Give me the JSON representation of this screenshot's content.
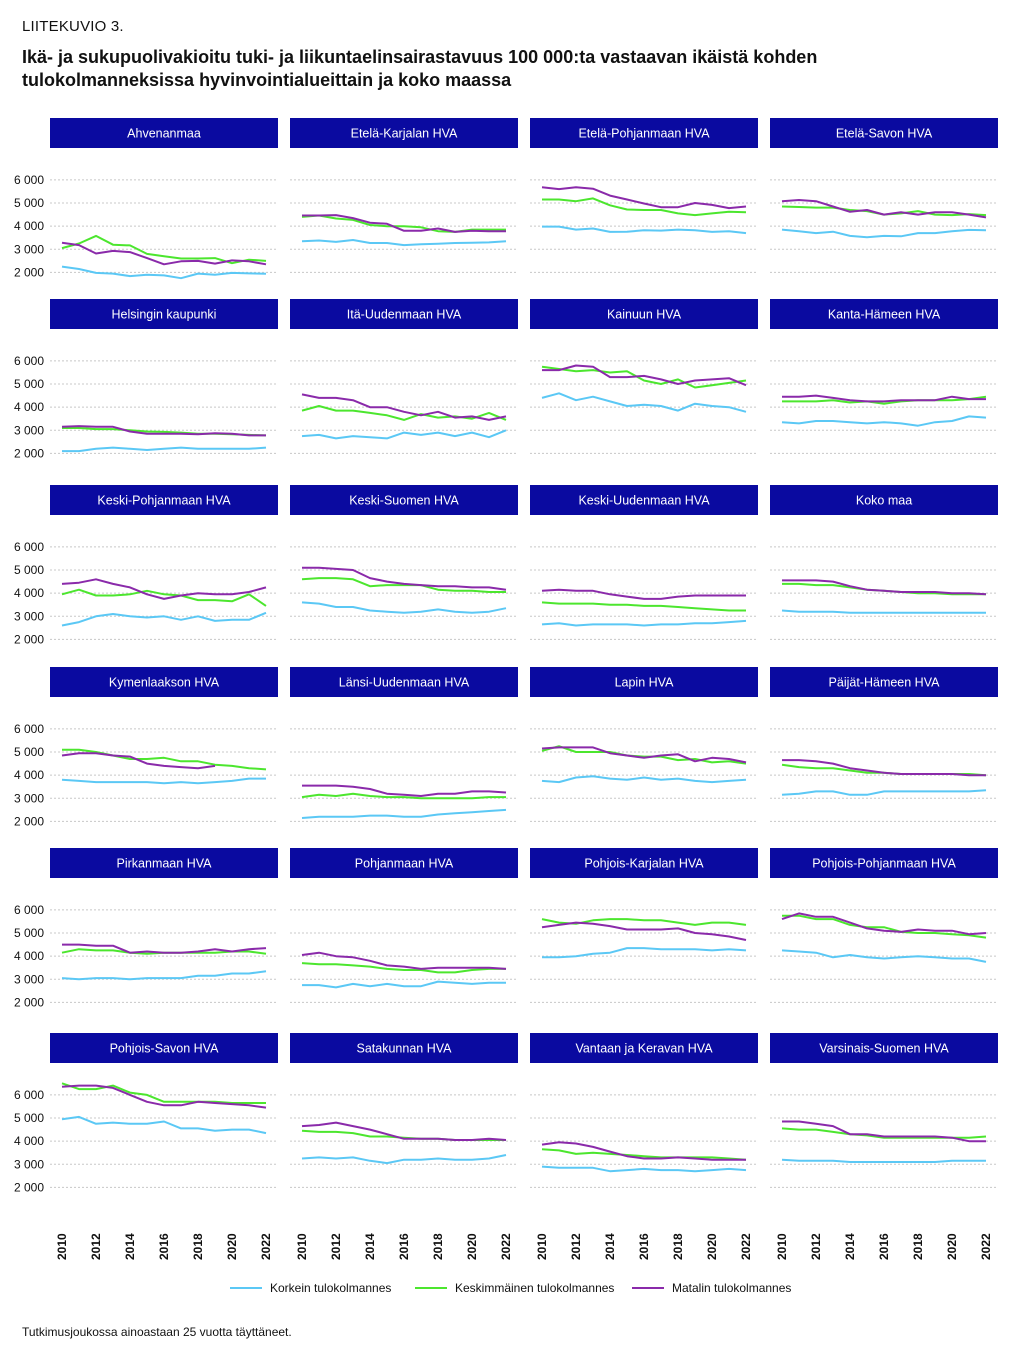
{
  "kicker": "LIITEKUVIO 3.",
  "title": "Ikä- ja sukupuolivakioitu tuki- ja liikuntaelinsairastavuus 100 000:ta vastaavan ikäistä kohden tulokolmanneksissa hyvinvointialueittain ja koko maassa",
  "footnote": "Tutkimusjoukossa ainoastaan 25 vuotta täyttäneet.",
  "colors": {
    "korkein": "#5bc8f5",
    "keskimmainen": "#4ce62e",
    "matalin": "#8a2aaa",
    "header": "#0a0aa0"
  },
  "chart_data": {
    "type": "line",
    "x": [
      2010,
      2011,
      2012,
      2013,
      2014,
      2015,
      2016,
      2017,
      2018,
      2019,
      2020,
      2021,
      2022
    ],
    "x_ticks": [
      "2010",
      "2012",
      "2014",
      "2016",
      "2018",
      "2020",
      "2022"
    ],
    "y_ticks": [
      "2 000",
      "3 000",
      "4 000",
      "5 000",
      "6 000"
    ],
    "ylim": [
      1500,
      6600
    ],
    "legend": [
      "Korkein tulokolmannes",
      "Keskimmäinen tulokolmannes",
      "Matalin tulokolmannes"
    ],
    "legend_placement": "bottom",
    "panels": [
      {
        "name": "Ahvenanmaa",
        "korkein": [
          2250,
          2150,
          1980,
          1950,
          1840,
          1900,
          1870,
          1750,
          1950,
          1900,
          1980,
          1960,
          1940
        ],
        "keskimmainen": [
          3050,
          3250,
          3580,
          3200,
          3170,
          2800,
          2700,
          2600,
          2600,
          2620,
          2400,
          2550,
          2500
        ],
        "matalin": [
          3280,
          3180,
          2820,
          2930,
          2880,
          2620,
          2350,
          2480,
          2500,
          2380,
          2520,
          2480,
          2350
        ]
      },
      {
        "name": "Etelä-Karjalan HVA",
        "korkein": [
          3350,
          3380,
          3320,
          3400,
          3270,
          3270,
          3180,
          3220,
          3240,
          3270,
          3280,
          3300,
          3350
        ],
        "keskimmainen": [
          4400,
          4460,
          4330,
          4270,
          4050,
          4000,
          4000,
          3950,
          3780,
          3750,
          3850,
          3850,
          3850
        ],
        "matalin": [
          4460,
          4460,
          4480,
          4350,
          4150,
          4100,
          3800,
          3800,
          3900,
          3750,
          3800,
          3780,
          3780
        ]
      },
      {
        "name": "Etelä-Pohjanmaan HVA",
        "korkein": [
          3980,
          3980,
          3850,
          3900,
          3750,
          3760,
          3820,
          3810,
          3850,
          3820,
          3750,
          3780,
          3700
        ],
        "keskimmainen": [
          5150,
          5150,
          5080,
          5200,
          4900,
          4720,
          4700,
          4700,
          4550,
          4480,
          4550,
          4620,
          4600
        ],
        "matalin": [
          5680,
          5600,
          5680,
          5620,
          5320,
          5150,
          4980,
          4820,
          4820,
          5000,
          4920,
          4780,
          4850
        ]
      },
      {
        "name": "Etelä-Savon HVA",
        "korkein": [
          3850,
          3780,
          3700,
          3760,
          3580,
          3520,
          3580,
          3560,
          3700,
          3700,
          3780,
          3840,
          3820
        ],
        "keskimmainen": [
          4850,
          4830,
          4800,
          4800,
          4700,
          4650,
          4500,
          4550,
          4650,
          4500,
          4480,
          4520,
          4480
        ],
        "matalin": [
          5080,
          5130,
          5080,
          4850,
          4620,
          4700,
          4500,
          4600,
          4500,
          4600,
          4600,
          4500,
          4380
        ]
      },
      {
        "name": "Helsingin kaupunki",
        "korkein": [
          2100,
          2100,
          2200,
          2250,
          2200,
          2150,
          2200,
          2250,
          2200,
          2200,
          2200,
          2200,
          2250
        ],
        "keskimmainen": [
          3100,
          3100,
          3050,
          3050,
          3000,
          2950,
          2930,
          2900,
          2850,
          2850,
          2830,
          2800,
          2780
        ],
        "matalin": [
          3150,
          3180,
          3150,
          3150,
          2950,
          2850,
          2850,
          2850,
          2830,
          2870,
          2850,
          2780,
          2780
        ]
      },
      {
        "name": "Itä-Uudenmaan HVA",
        "korkein": [
          2750,
          2800,
          2650,
          2750,
          2700,
          2650,
          2900,
          2800,
          2900,
          2750,
          2900,
          2700,
          3000
        ],
        "keskimmainen": [
          3850,
          4050,
          3850,
          3850,
          3750,
          3650,
          3450,
          3700,
          3550,
          3600,
          3500,
          3750,
          3450
        ],
        "matalin": [
          4550,
          4400,
          4400,
          4300,
          4000,
          4000,
          3800,
          3650,
          3800,
          3550,
          3600,
          3450,
          3600
        ]
      },
      {
        "name": "Kainuun HVA",
        "korkein": [
          4400,
          4600,
          4300,
          4450,
          4250,
          4050,
          4100,
          4050,
          3850,
          4150,
          4050,
          4000,
          3800
        ],
        "keskimmainen": [
          5750,
          5650,
          5550,
          5600,
          5500,
          5550,
          5150,
          5000,
          5200,
          4850,
          4950,
          5050,
          5150
        ],
        "matalin": [
          5600,
          5600,
          5800,
          5750,
          5300,
          5300,
          5350,
          5200,
          5000,
          5150,
          5200,
          5250,
          4950
        ]
      },
      {
        "name": "Kanta-Hämeen HVA",
        "korkein": [
          3350,
          3300,
          3400,
          3400,
          3350,
          3300,
          3350,
          3300,
          3200,
          3350,
          3400,
          3600,
          3550
        ],
        "keskimmainen": [
          4250,
          4250,
          4250,
          4300,
          4200,
          4250,
          4150,
          4250,
          4300,
          4300,
          4300,
          4350,
          4450
        ],
        "matalin": [
          4450,
          4450,
          4500,
          4400,
          4300,
          4250,
          4250,
          4300,
          4300,
          4300,
          4450,
          4350,
          4350
        ]
      },
      {
        "name": "Keski-Pohjanmaan HVA",
        "korkein": [
          2600,
          2750,
          3000,
          3100,
          3000,
          2950,
          3000,
          2850,
          3000,
          2800,
          2850,
          2850,
          3150
        ],
        "keskimmainen": [
          3950,
          4150,
          3900,
          3900,
          3950,
          4100,
          3950,
          3900,
          3700,
          3700,
          3650,
          3950,
          3450
        ],
        "matalin": [
          4400,
          4450,
          4600,
          4400,
          4250,
          3950,
          3750,
          3900,
          4000,
          3950,
          3950,
          4050,
          4250
        ]
      },
      {
        "name": "Keski-Suomen HVA",
        "korkein": [
          3600,
          3550,
          3400,
          3400,
          3250,
          3200,
          3150,
          3200,
          3300,
          3200,
          3150,
          3200,
          3350
        ],
        "keskimmainen": [
          4600,
          4650,
          4650,
          4600,
          4300,
          4350,
          4350,
          4350,
          4150,
          4100,
          4100,
          4050,
          4050
        ],
        "matalin": [
          5100,
          5100,
          5050,
          5000,
          4650,
          4500,
          4400,
          4350,
          4300,
          4300,
          4250,
          4250,
          4150
        ]
      },
      {
        "name": "Keski-Uudenmaan HVA",
        "korkein": [
          2650,
          2700,
          2600,
          2650,
          2650,
          2650,
          2600,
          2650,
          2650,
          2700,
          2700,
          2750,
          2800
        ],
        "keskimmainen": [
          3600,
          3550,
          3550,
          3550,
          3500,
          3500,
          3450,
          3450,
          3400,
          3350,
          3300,
          3250,
          3250
        ],
        "matalin": [
          4100,
          4150,
          4100,
          4100,
          3950,
          3850,
          3750,
          3750,
          3850,
          3900,
          3900,
          3900,
          3900
        ]
      },
      {
        "name": "Koko maa",
        "korkein": [
          3250,
          3200,
          3200,
          3200,
          3150,
          3150,
          3150,
          3150,
          3150,
          3150,
          3150,
          3150,
          3150
        ],
        "keskimmainen": [
          4400,
          4400,
          4350,
          4350,
          4250,
          4150,
          4100,
          4050,
          4000,
          4000,
          3950,
          3950,
          3950
        ],
        "matalin": [
          4550,
          4550,
          4550,
          4500,
          4300,
          4150,
          4100,
          4050,
          4050,
          4050,
          4000,
          4000,
          3950
        ]
      },
      {
        "name": "Kymenlaakson HVA",
        "korkein": [
          3800,
          3750,
          3700,
          3700,
          3700,
          3700,
          3650,
          3700,
          3650,
          3700,
          3750,
          3850,
          3850
        ],
        "keskimmainen": [
          5100,
          5100,
          5000,
          4850,
          4700,
          4700,
          4750,
          4600,
          4600,
          4450,
          4400,
          4300,
          4250
        ],
        "matalin": [
          4850,
          4950,
          4950,
          4850,
          4800,
          4500,
          4400,
          4350,
          4300,
          4400,
          null,
          null,
          null
        ]
      },
      {
        "name": "Länsi-Uudenmaan HVA",
        "korkein": [
          2150,
          2200,
          2200,
          2200,
          2250,
          2250,
          2200,
          2200,
          2300,
          2350,
          2400,
          2450,
          2500
        ],
        "keskimmainen": [
          3050,
          3150,
          3100,
          3200,
          3100,
          3050,
          3050,
          3000,
          3000,
          3000,
          3000,
          3050,
          3050
        ],
        "matalin": [
          3550,
          3550,
          3550,
          3500,
          3400,
          3200,
          3150,
          3100,
          3200,
          3200,
          3300,
          3300,
          3250
        ]
      },
      {
        "name": "Lapin HVA",
        "korkein": [
          3750,
          3700,
          3900,
          3950,
          3850,
          3800,
          3900,
          3800,
          3850,
          3750,
          3700,
          3750,
          3800
        ],
        "keskimmainen": [
          5050,
          5250,
          5000,
          5000,
          5000,
          4850,
          4800,
          4800,
          4650,
          4700,
          4550,
          4600,
          4500
        ],
        "matalin": [
          5150,
          5200,
          5200,
          5200,
          4950,
          4850,
          4750,
          4850,
          4900,
          4600,
          4750,
          4700,
          4550
        ]
      },
      {
        "name": "Päijät-Hämeen HVA",
        "korkein": [
          3150,
          3200,
          3300,
          3300,
          3150,
          3150,
          3300,
          3300,
          3300,
          3300,
          3300,
          3300,
          3350
        ],
        "keskimmainen": [
          4450,
          4350,
          4300,
          4300,
          4200,
          4100,
          4100,
          4050,
          4050,
          4050,
          4050,
          4050,
          4000
        ],
        "matalin": [
          4650,
          4650,
          4600,
          4500,
          4300,
          4200,
          4100,
          4050,
          4050,
          4050,
          4050,
          4000,
          4000
        ]
      },
      {
        "name": "Pirkanmaan HVA",
        "korkein": [
          3050,
          3000,
          3050,
          3050,
          3000,
          3050,
          3050,
          3050,
          3150,
          3150,
          3250,
          3250,
          3350
        ],
        "keskimmainen": [
          4150,
          4300,
          4250,
          4250,
          4150,
          4100,
          4150,
          4150,
          4150,
          4150,
          4200,
          4200,
          4100
        ],
        "matalin": [
          4500,
          4500,
          4450,
          4450,
          4150,
          4200,
          4150,
          4150,
          4200,
          4300,
          4200,
          4300,
          4350
        ]
      },
      {
        "name": "Pohjanmaan HVA",
        "korkein": [
          2750,
          2750,
          2650,
          2800,
          2700,
          2800,
          2700,
          2700,
          2900,
          2850,
          2800,
          2850,
          2850
        ],
        "keskimmainen": [
          3700,
          3650,
          3650,
          3600,
          3550,
          3450,
          3400,
          3400,
          3300,
          3300,
          3400,
          3450,
          3450
        ],
        "matalin": [
          4050,
          4150,
          4000,
          3950,
          3800,
          3600,
          3550,
          3450,
          3500,
          3500,
          3500,
          3500,
          3450
        ]
      },
      {
        "name": "Pohjois-Karjalan HVA",
        "korkein": [
          3950,
          3950,
          4000,
          4100,
          4150,
          4350,
          4350,
          4300,
          4300,
          4300,
          4250,
          4300,
          4250
        ],
        "keskimmainen": [
          5600,
          5450,
          5400,
          5550,
          5600,
          5600,
          5550,
          5550,
          5450,
          5350,
          5450,
          5450,
          5350
        ],
        "matalin": [
          5250,
          5350,
          5450,
          5400,
          5300,
          5150,
          5150,
          5150,
          5200,
          5000,
          4950,
          4850,
          4700
        ]
      },
      {
        "name": "Pohjois-Pohjanmaan HVA",
        "korkein": [
          4250,
          4200,
          4150,
          3950,
          4050,
          3950,
          3900,
          3950,
          4000,
          3950,
          3900,
          3900,
          3750
        ],
        "keskimmainen": [
          5750,
          5750,
          5600,
          5600,
          5350,
          5250,
          5250,
          5050,
          5000,
          5000,
          4950,
          4900,
          4800
        ],
        "matalin": [
          5600,
          5850,
          5700,
          5700,
          5450,
          5200,
          5100,
          5050,
          5150,
          5100,
          5100,
          4950,
          5000
        ]
      },
      {
        "name": "Pohjois-Savon HVA",
        "korkein": [
          4950,
          5050,
          4750,
          4800,
          4750,
          4750,
          4850,
          4550,
          4550,
          4450,
          4500,
          4500,
          4350
        ],
        "keskimmainen": [
          6500,
          6250,
          6250,
          6400,
          6100,
          6000,
          5700,
          5700,
          5700,
          5700,
          5650,
          5650,
          5650
        ],
        "matalin": [
          6350,
          6400,
          6400,
          6300,
          6000,
          5700,
          5550,
          5550,
          5700,
          5650,
          5600,
          5550,
          5450
        ]
      },
      {
        "name": "Satakunnan HVA",
        "korkein": [
          3250,
          3300,
          3250,
          3300,
          3150,
          3050,
          3200,
          3200,
          3250,
          3200,
          3200,
          3250,
          3400
        ],
        "keskimmainen": [
          4450,
          4400,
          4400,
          4350,
          4200,
          4200,
          4150,
          4100,
          4100,
          4050,
          4050,
          4050,
          4050
        ],
        "matalin": [
          4650,
          4700,
          4800,
          4650,
          4500,
          4300,
          4100,
          4100,
          4100,
          4050,
          4050,
          4100,
          4050
        ]
      },
      {
        "name": "Vantaan ja Keravan HVA",
        "korkein": [
          2900,
          2850,
          2850,
          2850,
          2700,
          2750,
          2800,
          2750,
          2750,
          2700,
          2750,
          2800,
          2750
        ],
        "keskimmainen": [
          3650,
          3600,
          3450,
          3500,
          3450,
          3400,
          3350,
          3300,
          3300,
          3300,
          3300,
          3250,
          3200
        ],
        "matalin": [
          3850,
          3950,
          3900,
          3750,
          3550,
          3350,
          3250,
          3250,
          3300,
          3250,
          3200,
          3200,
          3200
        ]
      },
      {
        "name": "Varsinais-Suomen HVA",
        "korkein": [
          3200,
          3150,
          3150,
          3150,
          3100,
          3100,
          3100,
          3100,
          3100,
          3100,
          3150,
          3150,
          3150
        ],
        "keskimmainen": [
          4550,
          4500,
          4500,
          4400,
          4300,
          4250,
          4150,
          4150,
          4150,
          4150,
          4150,
          4150,
          4200
        ],
        "matalin": [
          4850,
          4850,
          4750,
          4650,
          4300,
          4300,
          4200,
          4200,
          4200,
          4200,
          4150,
          4000,
          4000
        ]
      }
    ]
  }
}
